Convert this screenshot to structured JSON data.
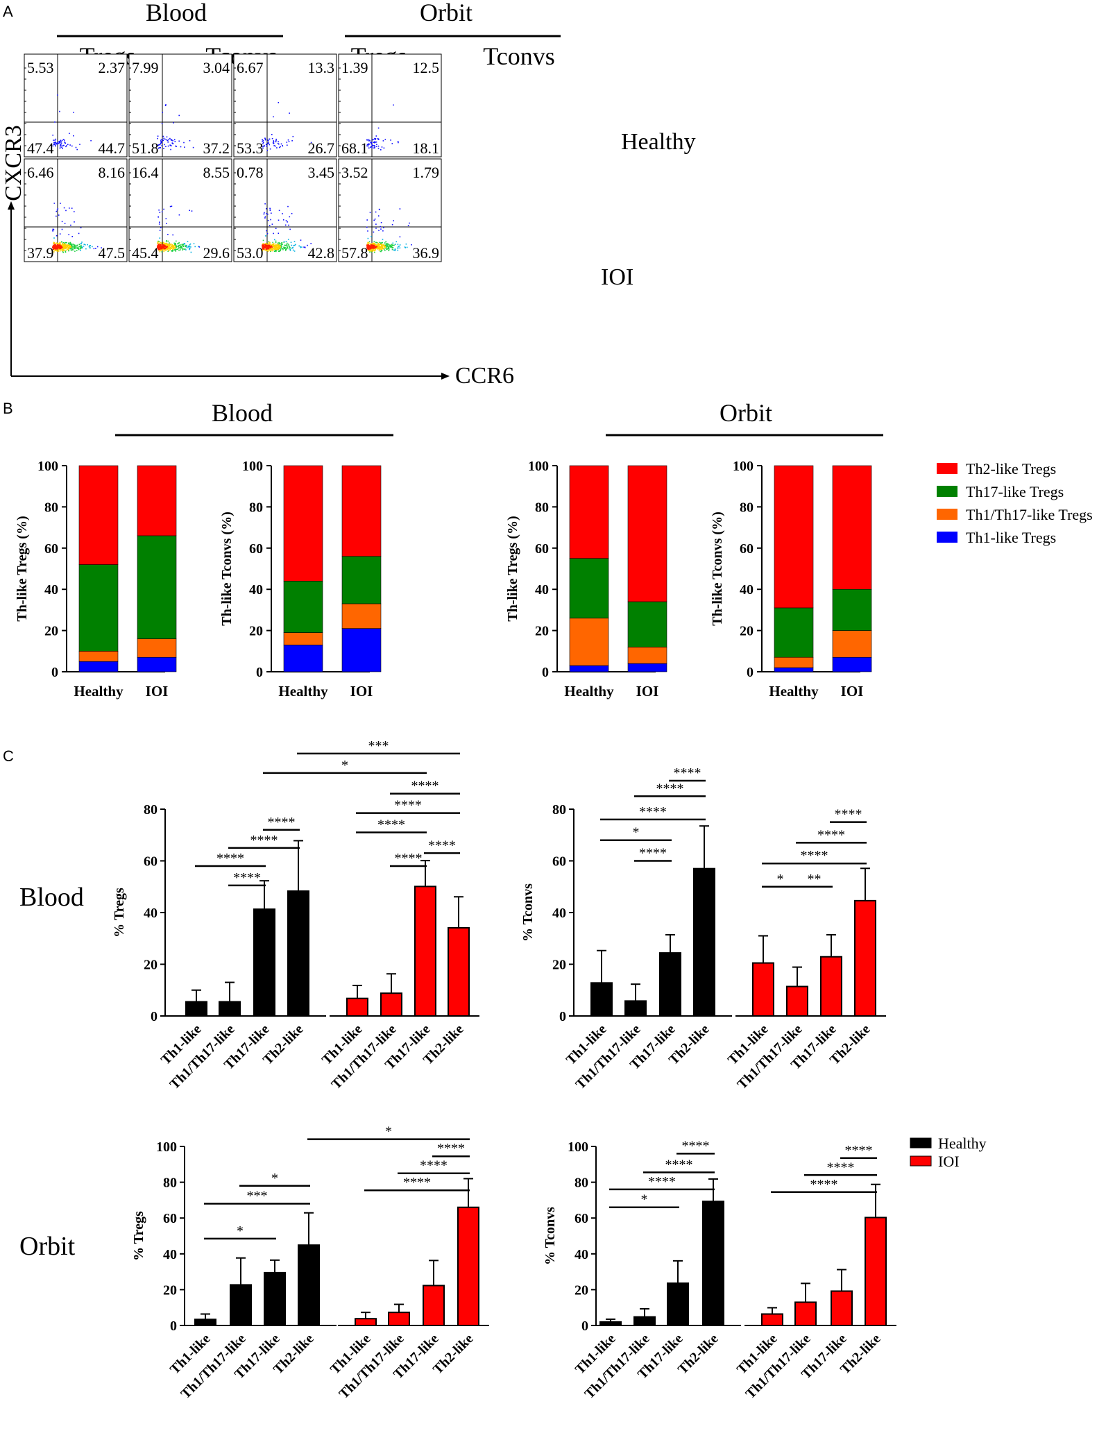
{
  "panel_labels": {
    "a": "A",
    "b": "B",
    "c": "C"
  },
  "panel_a": {
    "groups": [
      "Blood",
      "Orbit"
    ],
    "subgroups": [
      "Tregs",
      "Tconvs",
      "Tregs",
      "Tconvs"
    ],
    "rows": [
      "Healthy",
      "IOI"
    ],
    "y_axis_label": "CXCR3",
    "x_axis_label": "CCR6",
    "quadrants": [
      [
        [
          "5.53",
          "2.37",
          "47.4",
          "44.7"
        ],
        [
          "7.99",
          "3.04",
          "51.8",
          "37.2"
        ],
        [
          "6.67",
          "13.3",
          "53.3",
          "26.7"
        ],
        [
          "1.39",
          "12.5",
          "68.1",
          "18.1"
        ]
      ],
      [
        [
          "6.46",
          "8.16",
          "37.9",
          "47.5"
        ],
        [
          "16.4",
          "8.55",
          "45.4",
          "29.6"
        ],
        [
          "0.78",
          "3.45",
          "53.0",
          "42.8"
        ],
        [
          "3.52",
          "1.79",
          "57.8",
          "36.9"
        ]
      ]
    ]
  },
  "panel_b": {
    "groups": [
      "Blood",
      "Orbit"
    ],
    "legend": [
      "Th2-like Tregs",
      "Th17-like Tregs",
      "Th1/Th17-like Tregs",
      "Th1-like Tregs"
    ],
    "colors": {
      "th1": "#0000ff",
      "th1th17": "#ff6600",
      "th17": "#008000",
      "th2": "#ff0000"
    }
  },
  "panel_c": {
    "row_labels": [
      "Blood",
      "Orbit"
    ],
    "legend": [
      "Healthy",
      "IOI"
    ],
    "colors": {
      "healthy": "#000000",
      "ioi": "#ff0000"
    }
  },
  "chart_data": [
    {
      "type": "bar",
      "stacked": true,
      "panel": "B",
      "group": "Blood",
      "ylabel": "Th-like Tregs (%)",
      "categories": [
        "Healthy",
        "IOI"
      ],
      "ylim": [
        0,
        100
      ],
      "yticks": [
        "0",
        "20",
        "40",
        "60",
        "80",
        "100"
      ],
      "series": [
        {
          "name": "Th1-like Tregs",
          "values": [
            5,
            7
          ]
        },
        {
          "name": "Th1/Th17-like Tregs",
          "values": [
            5,
            9
          ]
        },
        {
          "name": "Th17-like Tregs",
          "values": [
            42,
            50
          ]
        },
        {
          "name": "Th2-like Tregs",
          "values": [
            48,
            34
          ]
        }
      ]
    },
    {
      "type": "bar",
      "stacked": true,
      "panel": "B",
      "group": "Blood",
      "ylabel": "Th-like Tconvs (%)",
      "categories": [
        "Healthy",
        "IOI"
      ],
      "ylim": [
        0,
        100
      ],
      "yticks": [
        "0",
        "20",
        "40",
        "60",
        "80",
        "100"
      ],
      "series": [
        {
          "name": "Th1-like Tregs",
          "values": [
            13,
            21
          ]
        },
        {
          "name": "Th1/Th17-like Tregs",
          "values": [
            6,
            12
          ]
        },
        {
          "name": "Th17-like Tregs",
          "values": [
            25,
            23
          ]
        },
        {
          "name": "Th2-like Tregs",
          "values": [
            56,
            44
          ]
        }
      ]
    },
    {
      "type": "bar",
      "stacked": true,
      "panel": "B",
      "group": "Orbit",
      "ylabel": "Th-like Tregs (%)",
      "categories": [
        "Healthy",
        "IOI"
      ],
      "ylim": [
        0,
        100
      ],
      "yticks": [
        "0",
        "20",
        "40",
        "60",
        "80",
        "100"
      ],
      "series": [
        {
          "name": "Th1-like Tregs",
          "values": [
            3,
            4
          ]
        },
        {
          "name": "Th1/Th17-like Tregs",
          "values": [
            23,
            8
          ]
        },
        {
          "name": "Th17-like Tregs",
          "values": [
            29,
            22
          ]
        },
        {
          "name": "Th2-like Tregs",
          "values": [
            45,
            66
          ]
        }
      ]
    },
    {
      "type": "bar",
      "stacked": true,
      "panel": "B",
      "group": "Orbit",
      "ylabel": "Th-like Tconvs (%)",
      "categories": [
        "Healthy",
        "IOI"
      ],
      "ylim": [
        0,
        100
      ],
      "yticks": [
        "0",
        "20",
        "40",
        "60",
        "80",
        "100"
      ],
      "series": [
        {
          "name": "Th1-like Tregs",
          "values": [
            2,
            7
          ]
        },
        {
          "name": "Th1/Th17-like Tregs",
          "values": [
            5,
            13
          ]
        },
        {
          "name": "Th17-like Tregs",
          "values": [
            24,
            20
          ]
        },
        {
          "name": "Th2-like Tregs",
          "values": [
            69,
            60
          ]
        }
      ]
    },
    {
      "type": "bar",
      "panel": "C",
      "row": "Blood",
      "ylabel": "% Tregs",
      "ylim": [
        0,
        80
      ],
      "yticks": [
        "0",
        "20",
        "40",
        "60",
        "80"
      ],
      "categories": [
        "Th1-like",
        "Th1/Th17-like",
        "Th17-like",
        "Th2-like",
        "Th1-like",
        "Th1/Th17-like",
        "Th17-like",
        "Th2-like"
      ],
      "groups": [
        "Healthy",
        "Healthy",
        "Healthy",
        "Healthy",
        "IOI",
        "IOI",
        "IOI",
        "IOI"
      ],
      "values": [
        5.5,
        5.5,
        41.3,
        48.3,
        6.8,
        8.8,
        50.1,
        34.1
      ],
      "errors": [
        4.5,
        7.5,
        11.0,
        19.5,
        5.0,
        7.5,
        10.0,
        12.0
      ],
      "significance": [
        {
          "from": 2,
          "to": 3,
          "y": 72,
          "label": "****"
        },
        {
          "from": 1,
          "to": 3,
          "y": 65,
          "label": "****"
        },
        {
          "from": 0,
          "to": 2,
          "y": 58,
          "label": "****"
        },
        {
          "from": 1,
          "to": 2,
          "y": 50.5,
          "label": "****"
        },
        {
          "from": 5,
          "to": 7,
          "y": 86,
          "label": "****"
        },
        {
          "from": 4,
          "to": 7,
          "y": 78.5,
          "label": "****"
        },
        {
          "from": 4,
          "to": 6,
          "y": 71,
          "label": "****"
        },
        {
          "from": 6,
          "to": 7,
          "y": 63,
          "label": "****"
        },
        {
          "from": 5,
          "to": 6,
          "y": 58,
          "label": "****"
        },
        {
          "from": 2,
          "to": 6,
          "y": 94,
          "label": "*"
        },
        {
          "from": 3,
          "to": 7,
          "y": 101.5,
          "label": "***"
        }
      ]
    },
    {
      "type": "bar",
      "panel": "C",
      "row": "Blood",
      "ylabel": "% Tconvs",
      "ylim": [
        0,
        80
      ],
      "yticks": [
        "0",
        "20",
        "40",
        "60",
        "80"
      ],
      "categories": [
        "Th1-like",
        "Th1/Th17-like",
        "Th17-like",
        "Th2-like",
        "Th1-like",
        "Th1/Th17-like",
        "Th17-like",
        "Th2-like"
      ],
      "groups": [
        "Healthy",
        "Healthy",
        "Healthy",
        "Healthy",
        "IOI",
        "IOI",
        "IOI",
        "IOI"
      ],
      "values": [
        12.8,
        5.8,
        24.4,
        57.0,
        20.5,
        11.4,
        22.9,
        44.6
      ],
      "errors": [
        12.5,
        6.5,
        7.0,
        16.5,
        10.5,
        7.5,
        8.5,
        12.5
      ],
      "significance": [
        {
          "from": 2,
          "to": 3,
          "y": 91,
          "label": "****"
        },
        {
          "from": 1,
          "to": 3,
          "y": 85,
          "label": "****"
        },
        {
          "from": 0,
          "to": 3,
          "y": 76,
          "label": "****"
        },
        {
          "from": 0,
          "to": 2,
          "y": 68,
          "label": "*"
        },
        {
          "from": 1,
          "to": 2,
          "y": 60,
          "label": "****"
        },
        {
          "from": 6,
          "to": 7,
          "y": 75,
          "label": "****"
        },
        {
          "from": 5,
          "to": 7,
          "y": 67,
          "label": "****"
        },
        {
          "from": 4,
          "to": 7,
          "y": 59,
          "label": "****"
        },
        {
          "from": 4,
          "to": 5,
          "y": 50,
          "label": "*"
        },
        {
          "from": 5,
          "to": 6,
          "y": 50,
          "label": "**"
        }
      ]
    },
    {
      "type": "bar",
      "panel": "C",
      "row": "Orbit",
      "ylabel": "% Tregs",
      "ylim": [
        0,
        100
      ],
      "yticks": [
        "0",
        "20",
        "40",
        "60",
        "80",
        "100"
      ],
      "categories": [
        "Th1-like",
        "Th1/Th17-like",
        "Th17-like",
        "Th2-like",
        "Th1-like",
        "Th1/Th17-like",
        "Th17-like",
        "Th2-like"
      ],
      "groups": [
        "Healthy",
        "Healthy",
        "Healthy",
        "Healthy",
        "IOI",
        "IOI",
        "IOI",
        "IOI"
      ],
      "values": [
        3.4,
        22.7,
        29.5,
        44.9,
        3.8,
        7.3,
        22.3,
        66.0
      ],
      "errors": [
        3.0,
        15.0,
        7.0,
        18.0,
        3.5,
        4.5,
        14.0,
        16.0
      ],
      "significance": [
        {
          "from": 1,
          "to": 3,
          "y": 78,
          "label": "*"
        },
        {
          "from": 0,
          "to": 3,
          "y": 68,
          "label": "***"
        },
        {
          "from": 0,
          "to": 2,
          "y": 48.5,
          "label": "*"
        },
        {
          "from": 6,
          "to": 7,
          "y": 94.5,
          "label": "****"
        },
        {
          "from": 5,
          "to": 7,
          "y": 85,
          "label": "****"
        },
        {
          "from": 4,
          "to": 7,
          "y": 75.5,
          "label": "****"
        },
        {
          "from": 3,
          "to": 7,
          "y": 104,
          "label": "*"
        }
      ]
    },
    {
      "type": "bar",
      "panel": "C",
      "row": "Orbit",
      "ylabel": "% Tconvs",
      "ylim": [
        0,
        100
      ],
      "yticks": [
        "0",
        "20",
        "40",
        "60",
        "80",
        "100"
      ],
      "categories": [
        "Th1-like",
        "Th1/Th17-like",
        "Th17-like",
        "Th2-like",
        "Th1-like",
        "Th1/Th17-like",
        "Th17-like",
        "Th2-like"
      ],
      "groups": [
        "Healthy",
        "Healthy",
        "Healthy",
        "Healthy",
        "IOI",
        "IOI",
        "IOI",
        "IOI"
      ],
      "values": [
        2.0,
        4.8,
        23.6,
        69.3,
        6.4,
        13.0,
        19.2,
        60.3
      ],
      "errors": [
        1.5,
        4.5,
        12.5,
        12.5,
        3.5,
        10.5,
        12.0,
        18.5
      ],
      "significance": [
        {
          "from": 2,
          "to": 3,
          "y": 96,
          "label": "****"
        },
        {
          "from": 1,
          "to": 3,
          "y": 85.5,
          "label": "****"
        },
        {
          "from": 0,
          "to": 3,
          "y": 76,
          "label": "****"
        },
        {
          "from": 0,
          "to": 2,
          "y": 66,
          "label": "*"
        },
        {
          "from": 6,
          "to": 7,
          "y": 93.5,
          "label": "****"
        },
        {
          "from": 5,
          "to": 7,
          "y": 84,
          "label": "****"
        },
        {
          "from": 4,
          "to": 7,
          "y": 74.5,
          "label": "****"
        }
      ]
    }
  ]
}
